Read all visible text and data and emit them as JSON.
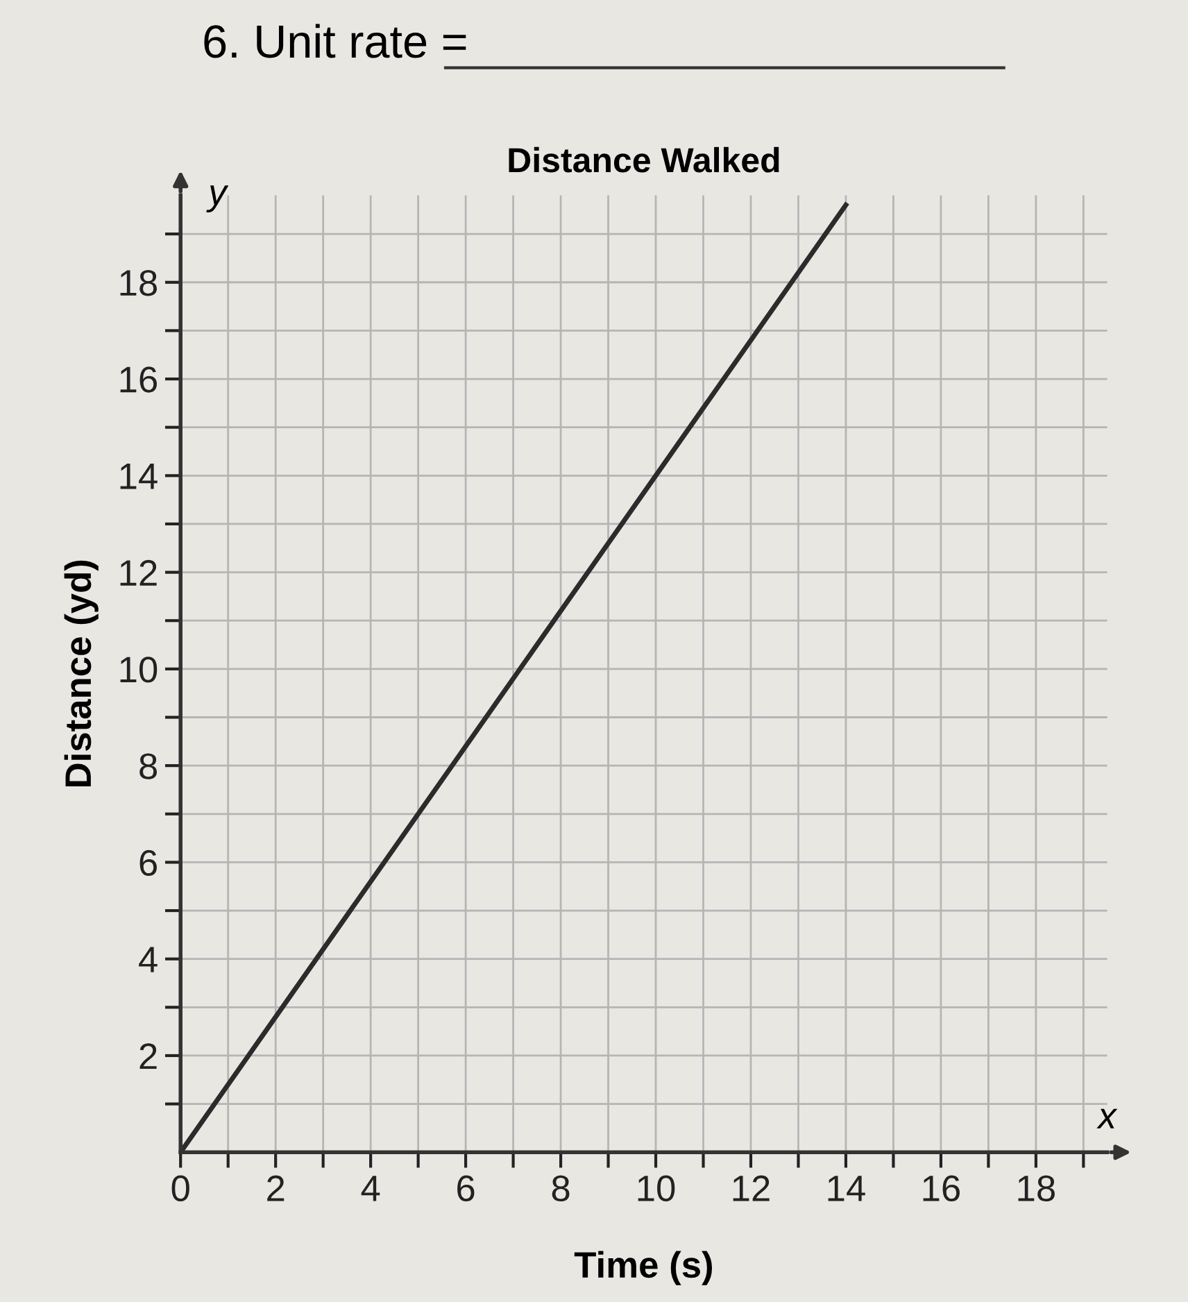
{
  "chart_data": {
    "type": "line",
    "title": "Distance Walked",
    "xlabel": "Time (s)",
    "ylabel": "Distance (yd)",
    "annotations": [
      "6. Unit rate =",
      "y",
      "x"
    ],
    "x": [
      0,
      14
    ],
    "series": [
      {
        "color": "#2b2b2b",
        "values": [
          0,
          19.6
        ]
      }
    ],
    "xlim": [
      0,
      19.5
    ],
    "ylim": [
      0,
      19.8
    ],
    "xticks": [
      0,
      {
        "value": 1,
        "label": null
      },
      2,
      {
        "value": 3,
        "label": null
      },
      4,
      {
        "value": 5,
        "label": null
      },
      6,
      {
        "value": 7,
        "label": null
      },
      8,
      {
        "value": 9,
        "label": null
      },
      10,
      {
        "value": 11,
        "label": null
      },
      12,
      {
        "value": 13,
        "label": null
      },
      14,
      {
        "value": 15,
        "label": null
      },
      16,
      {
        "value": 17,
        "label": null
      },
      18,
      {
        "value": 19,
        "label": null
      }
    ],
    "yticks": [
      {
        "value": 1,
        "label": null
      },
      2,
      {
        "value": 3,
        "label": null
      },
      4,
      {
        "value": 5,
        "label": null
      },
      6,
      {
        "value": 7,
        "label": null
      },
      8,
      {
        "value": 9,
        "label": null
      },
      10,
      {
        "value": 11,
        "label": null
      },
      12,
      {
        "value": 13,
        "label": null
      },
      14,
      {
        "value": 15,
        "label": null
      },
      16,
      {
        "value": 17,
        "label": null
      },
      18,
      {
        "value": 19,
        "label": null
      }
    ],
    "grid": true,
    "marker": "none",
    "line_style": "solid"
  }
}
